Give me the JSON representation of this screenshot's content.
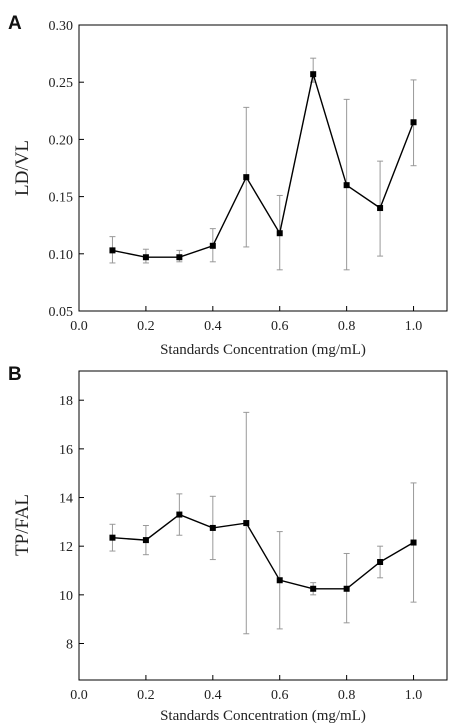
{
  "chart_data": [
    {
      "type": "line",
      "panel": "A",
      "xlabel": "Standards Concentration (mg/mL)",
      "ylabel": "LD/VL",
      "xlim": [
        0.0,
        1.1
      ],
      "ylim": [
        0.05,
        0.3
      ],
      "xticks": [
        "0.0",
        "0.2",
        "0.4",
        "0.6",
        "0.8",
        "1.0"
      ],
      "yticks": [
        "0.05",
        "0.10",
        "0.15",
        "0.20",
        "0.25",
        "0.30"
      ],
      "grid": false,
      "x": [
        0.1,
        0.2,
        0.3,
        0.4,
        0.5,
        0.6,
        0.7,
        0.8,
        0.9,
        1.0
      ],
      "y": [
        0.103,
        0.097,
        0.097,
        0.107,
        0.167,
        0.118,
        0.257,
        0.16,
        0.14,
        0.215
      ],
      "err_low": [
        0.092,
        0.092,
        0.093,
        0.093,
        0.106,
        0.086,
        0.25,
        0.086,
        0.098,
        0.177
      ],
      "err_high": [
        0.115,
        0.104,
        0.103,
        0.122,
        0.228,
        0.151,
        0.271,
        0.235,
        0.181,
        0.252
      ]
    },
    {
      "type": "line",
      "panel": "B",
      "xlabel": "Standards Concentration (mg/mL)",
      "ylabel": "TP/FAL",
      "xlim": [
        0.0,
        1.1
      ],
      "ylim": [
        6.5,
        19.2
      ],
      "xticks": [
        "0.0",
        "0.2",
        "0.4",
        "0.6",
        "0.8",
        "1.0"
      ],
      "yticks": [
        "8",
        "10",
        "12",
        "14",
        "16",
        "18"
      ],
      "grid": false,
      "x": [
        0.1,
        0.2,
        0.3,
        0.4,
        0.5,
        0.6,
        0.7,
        0.8,
        0.9,
        1.0
      ],
      "y": [
        12.35,
        12.25,
        13.3,
        12.75,
        12.95,
        10.6,
        10.25,
        10.25,
        11.35,
        12.15
      ],
      "err_low": [
        11.8,
        11.65,
        12.45,
        11.45,
        8.4,
        8.6,
        10.0,
        8.85,
        10.7,
        9.7
      ],
      "err_high": [
        12.9,
        12.85,
        14.15,
        14.05,
        17.5,
        12.6,
        10.5,
        11.7,
        12.0,
        14.6
      ]
    }
  ]
}
